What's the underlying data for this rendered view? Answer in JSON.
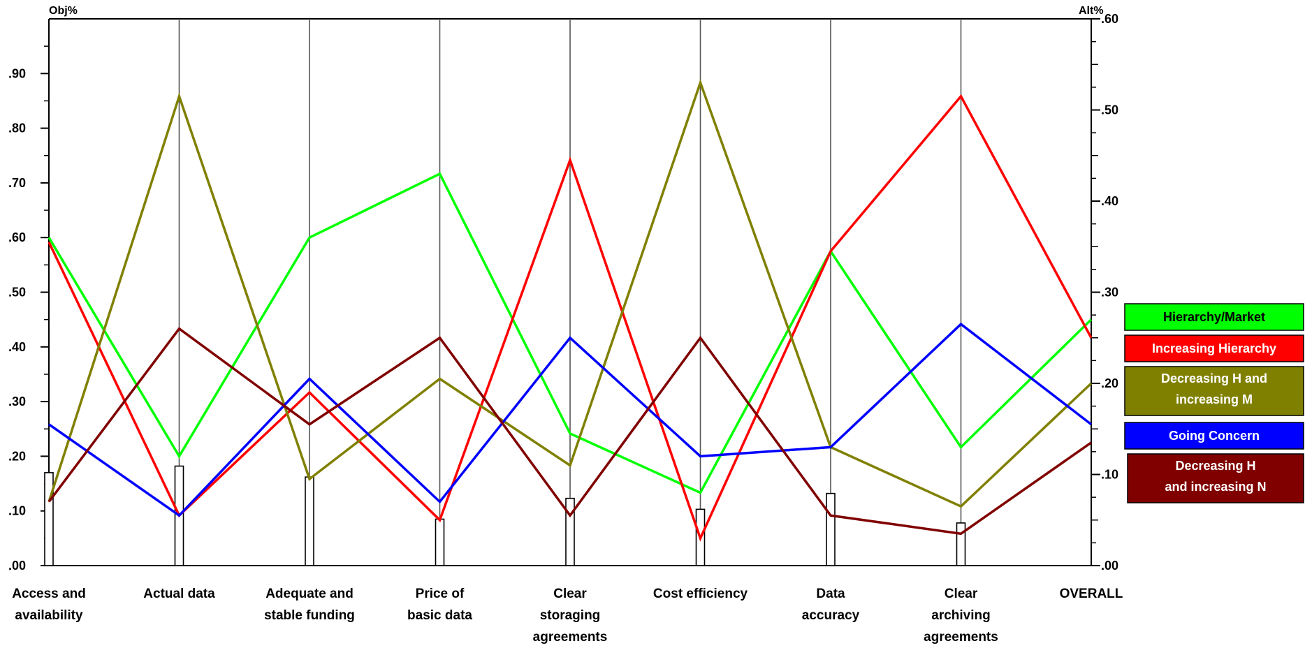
{
  "chart_data": {
    "type": "line",
    "left_axis_title": "Obj%",
    "right_axis_title": "Alt%",
    "left_axis": {
      "range": [
        0,
        100
      ],
      "ticks": [
        ".00",
        ".10",
        ".20",
        ".30",
        ".40",
        ".50",
        ".60",
        ".70",
        ".80",
        ".90"
      ]
    },
    "right_axis": {
      "range": [
        0,
        0.6
      ],
      "ticks": [
        ".00",
        ".10",
        ".20",
        ".30",
        ".40",
        ".50",
        ".60"
      ]
    },
    "categories": [
      [
        "Access and",
        "availability"
      ],
      [
        "Actual data"
      ],
      [
        "Adequate and",
        "stable funding"
      ],
      [
        "Price of",
        "basic data"
      ],
      [
        "Clear",
        "storaging",
        "agreements"
      ],
      [
        "Cost efficiency"
      ],
      [
        "Data",
        "accuracy"
      ],
      [
        "Clear",
        "archiving",
        "agreements"
      ],
      [
        "OVERALL"
      ]
    ],
    "objective_weights": [
      17,
      18.2,
      16.2,
      8.5,
      12.3,
      10.3,
      13.2,
      7.8
    ],
    "series": [
      {
        "name": "Hierarchy/Market",
        "color": "#00ff00",
        "values": [
          0.36,
          0.12,
          0.36,
          0.43,
          0.145,
          0.08,
          0.345,
          0.13,
          0.27
        ]
      },
      {
        "name": "Increasing Hierarchy",
        "color": "#ff0000",
        "values": [
          0.355,
          0.055,
          0.19,
          0.05,
          0.445,
          0.03,
          0.345,
          0.515,
          0.25
        ]
      },
      {
        "name": "Decreasing H and increasing M",
        "color": "#808000",
        "values": [
          0.07,
          0.515,
          0.095,
          0.205,
          0.11,
          0.53,
          0.13,
          0.065,
          0.2
        ]
      },
      {
        "name": "Going Concern",
        "color": "#0000ff",
        "values": [
          0.155,
          0.055,
          0.205,
          0.07,
          0.25,
          0.12,
          0.13,
          0.265,
          0.155
        ]
      },
      {
        "name": "Decreasing H and increasing N",
        "color": "#800000",
        "values": [
          0.07,
          0.26,
          0.155,
          0.25,
          0.055,
          0.25,
          0.055,
          0.035,
          0.135
        ]
      }
    ],
    "legend": [
      {
        "lines": [
          "Hierarchy/Market"
        ],
        "bg": "#00ff00",
        "text_color": "#000000"
      },
      {
        "lines": [
          "Increasing Hierarchy"
        ],
        "bg": "#ff0000",
        "text_color": "#ffffff"
      },
      {
        "lines": [
          "Decreasing H and",
          "increasing M"
        ],
        "bg": "#808000",
        "text_color": "#ffffff"
      },
      {
        "lines": [
          "Going Concern"
        ],
        "bg": "#0000ff",
        "text_color": "#ffffff"
      },
      {
        "lines": [
          "Decreasing H",
          "and increasing N"
        ],
        "bg": "#800000",
        "text_color": "#ffffff"
      }
    ]
  }
}
